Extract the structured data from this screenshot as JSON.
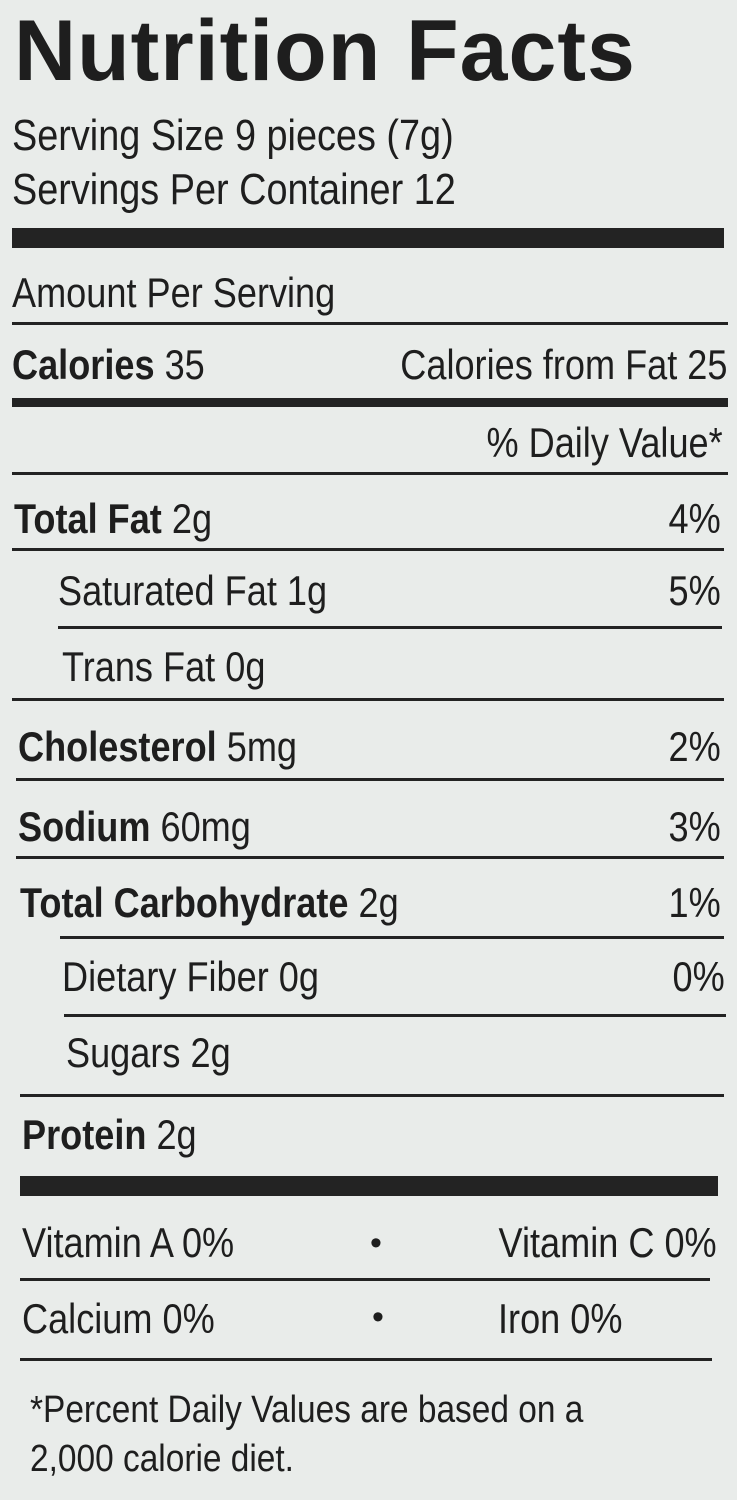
{
  "title": "Nutrition Facts",
  "serving_size": "Serving Size 9 pieces (7g)",
  "servings_per_container": "Servings Per Container 12",
  "amount_per_serving": "Amount Per Serving",
  "calories": {
    "label": "Calories",
    "value": "35",
    "from_fat": "Calories from Fat 25"
  },
  "dv_header": "% Daily Value*",
  "nutrients": {
    "total_fat": {
      "label": "Total Fat",
      "amount": "2g",
      "dv": "4%"
    },
    "saturated_fat": {
      "label": "Saturated Fat",
      "amount": "1g",
      "dv": "5%"
    },
    "trans_fat": {
      "label": "Trans Fat",
      "amount": "0g"
    },
    "cholesterol": {
      "label": "Cholesterol",
      "amount": "5mg",
      "dv": "2%"
    },
    "sodium": {
      "label": "Sodium",
      "amount": "60mg",
      "dv": "3%"
    },
    "total_carb": {
      "label": "Total Carbohydrate",
      "amount": "2g",
      "dv": "1%"
    },
    "fiber": {
      "label": "Dietary Fiber",
      "amount": "0g",
      "dv": "0%"
    },
    "sugars": {
      "label": "Sugars",
      "amount": "2g"
    },
    "protein": {
      "label": "Protein",
      "amount": "2g"
    }
  },
  "vitamins": {
    "vitamin_a": "Vitamin A 0%",
    "vitamin_c": "Vitamin C 0%",
    "calcium": "Calcium 0%",
    "iron": "Iron 0%",
    "separator": "•"
  },
  "footnote": {
    "line1": "*Percent Daily Values are based on a",
    "line2": "2,000 calorie diet."
  }
}
